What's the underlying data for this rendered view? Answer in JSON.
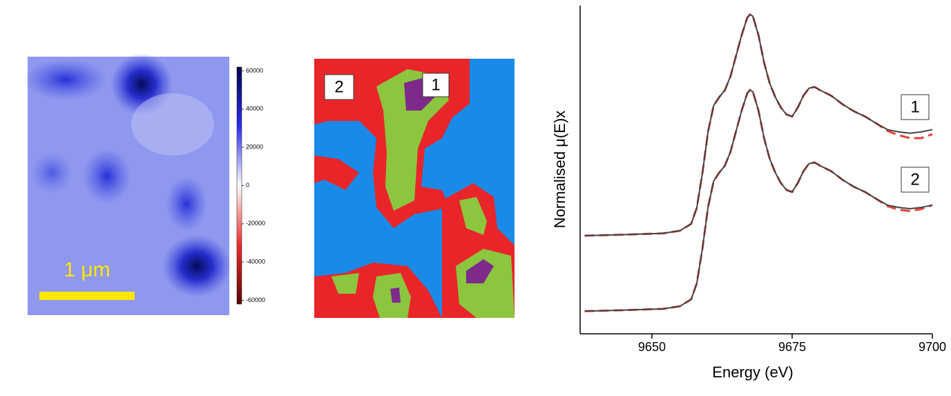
{
  "heatmap": {
    "scale_bar": "1 μm",
    "colorbar": {
      "lim": [
        -62000,
        62000
      ],
      "ticks": [
        60000,
        40000,
        20000,
        0,
        -20000,
        -40000,
        -60000
      ]
    }
  },
  "cluster_map": {
    "labels": [
      "2",
      "1"
    ]
  },
  "chart_data": {
    "type": "line",
    "xlabel": "Energy (eV)",
    "ylabel": "Normalised μ(E)x",
    "xlim": [
      9637.2,
      9700
    ],
    "xticks": [
      9650,
      9675,
      9700
    ],
    "ylim": [
      0,
      100
    ],
    "x": [
      9638,
      9645,
      9652,
      9655,
      9657,
      9658,
      9659,
      9660,
      9661,
      9662,
      9663,
      9664,
      9665,
      9666,
      9667,
      9667.5,
      9668,
      9669,
      9670,
      9671,
      9672,
      9673,
      9674,
      9675,
      9676,
      9677,
      9678,
      9679,
      9680,
      9682,
      9684,
      9686,
      9688,
      9690,
      9692,
      9694,
      9696,
      9698,
      9700
    ],
    "series": [
      {
        "color": "#e8403a",
        "dash": true,
        "values": [
          29.9,
          30.2,
          30.6,
          31.4,
          33.5,
          38.4,
          48.9,
          61.5,
          69.5,
          72.1,
          74.2,
          78.4,
          84.7,
          91.0,
          96.3,
          97.3,
          96.7,
          91.0,
          82.6,
          76.3,
          72.1,
          68.9,
          66.8,
          66.2,
          68.9,
          72.5,
          74.8,
          75.2,
          74.2,
          72.5,
          69.9,
          67.8,
          66.2,
          64.1,
          61.8,
          60.5,
          59.6,
          59.6,
          60.8
        ]
      },
      {
        "color": "#444444",
        "dash": false,
        "values": [
          29.9,
          30.2,
          30.6,
          31.4,
          33.5,
          38.4,
          48.9,
          61.5,
          69.5,
          72.1,
          74.2,
          78.4,
          84.7,
          91.0,
          96.3,
          97.3,
          96.7,
          91.0,
          82.6,
          76.3,
          72.1,
          68.9,
          66.8,
          66.2,
          68.9,
          72.5,
          74.8,
          75.2,
          74.2,
          72.5,
          69.9,
          67.8,
          66.2,
          64.1,
          62.2,
          61.5,
          61.1,
          61.5,
          62.2
        ]
      },
      {
        "color": "#e8403a",
        "dash": true,
        "values": [
          6.9,
          7.2,
          7.6,
          8.4,
          10.5,
          15.4,
          25.9,
          38.5,
          46.5,
          49.1,
          51.2,
          55.4,
          61.7,
          68.0,
          73.3,
          74.3,
          73.7,
          68.0,
          59.6,
          53.3,
          49.1,
          45.9,
          43.8,
          43.2,
          45.9,
          49.5,
          51.8,
          52.2,
          51.2,
          49.5,
          46.9,
          44.8,
          43.2,
          41.1,
          38.9,
          37.8,
          37.4,
          38.0,
          39.2
        ]
      },
      {
        "color": "#444444",
        "dash": false,
        "values": [
          6.9,
          7.2,
          7.6,
          8.4,
          10.5,
          15.4,
          25.9,
          38.5,
          46.5,
          49.1,
          51.2,
          55.4,
          61.7,
          68.0,
          73.3,
          74.3,
          73.7,
          68.0,
          59.6,
          53.3,
          49.1,
          45.9,
          43.8,
          43.2,
          45.9,
          49.5,
          51.8,
          52.2,
          51.2,
          49.5,
          46.9,
          44.8,
          43.2,
          41.1,
          39.2,
          38.5,
          38.1,
          38.5,
          39.2
        ]
      }
    ],
    "labels": [
      "1",
      "2"
    ]
  }
}
